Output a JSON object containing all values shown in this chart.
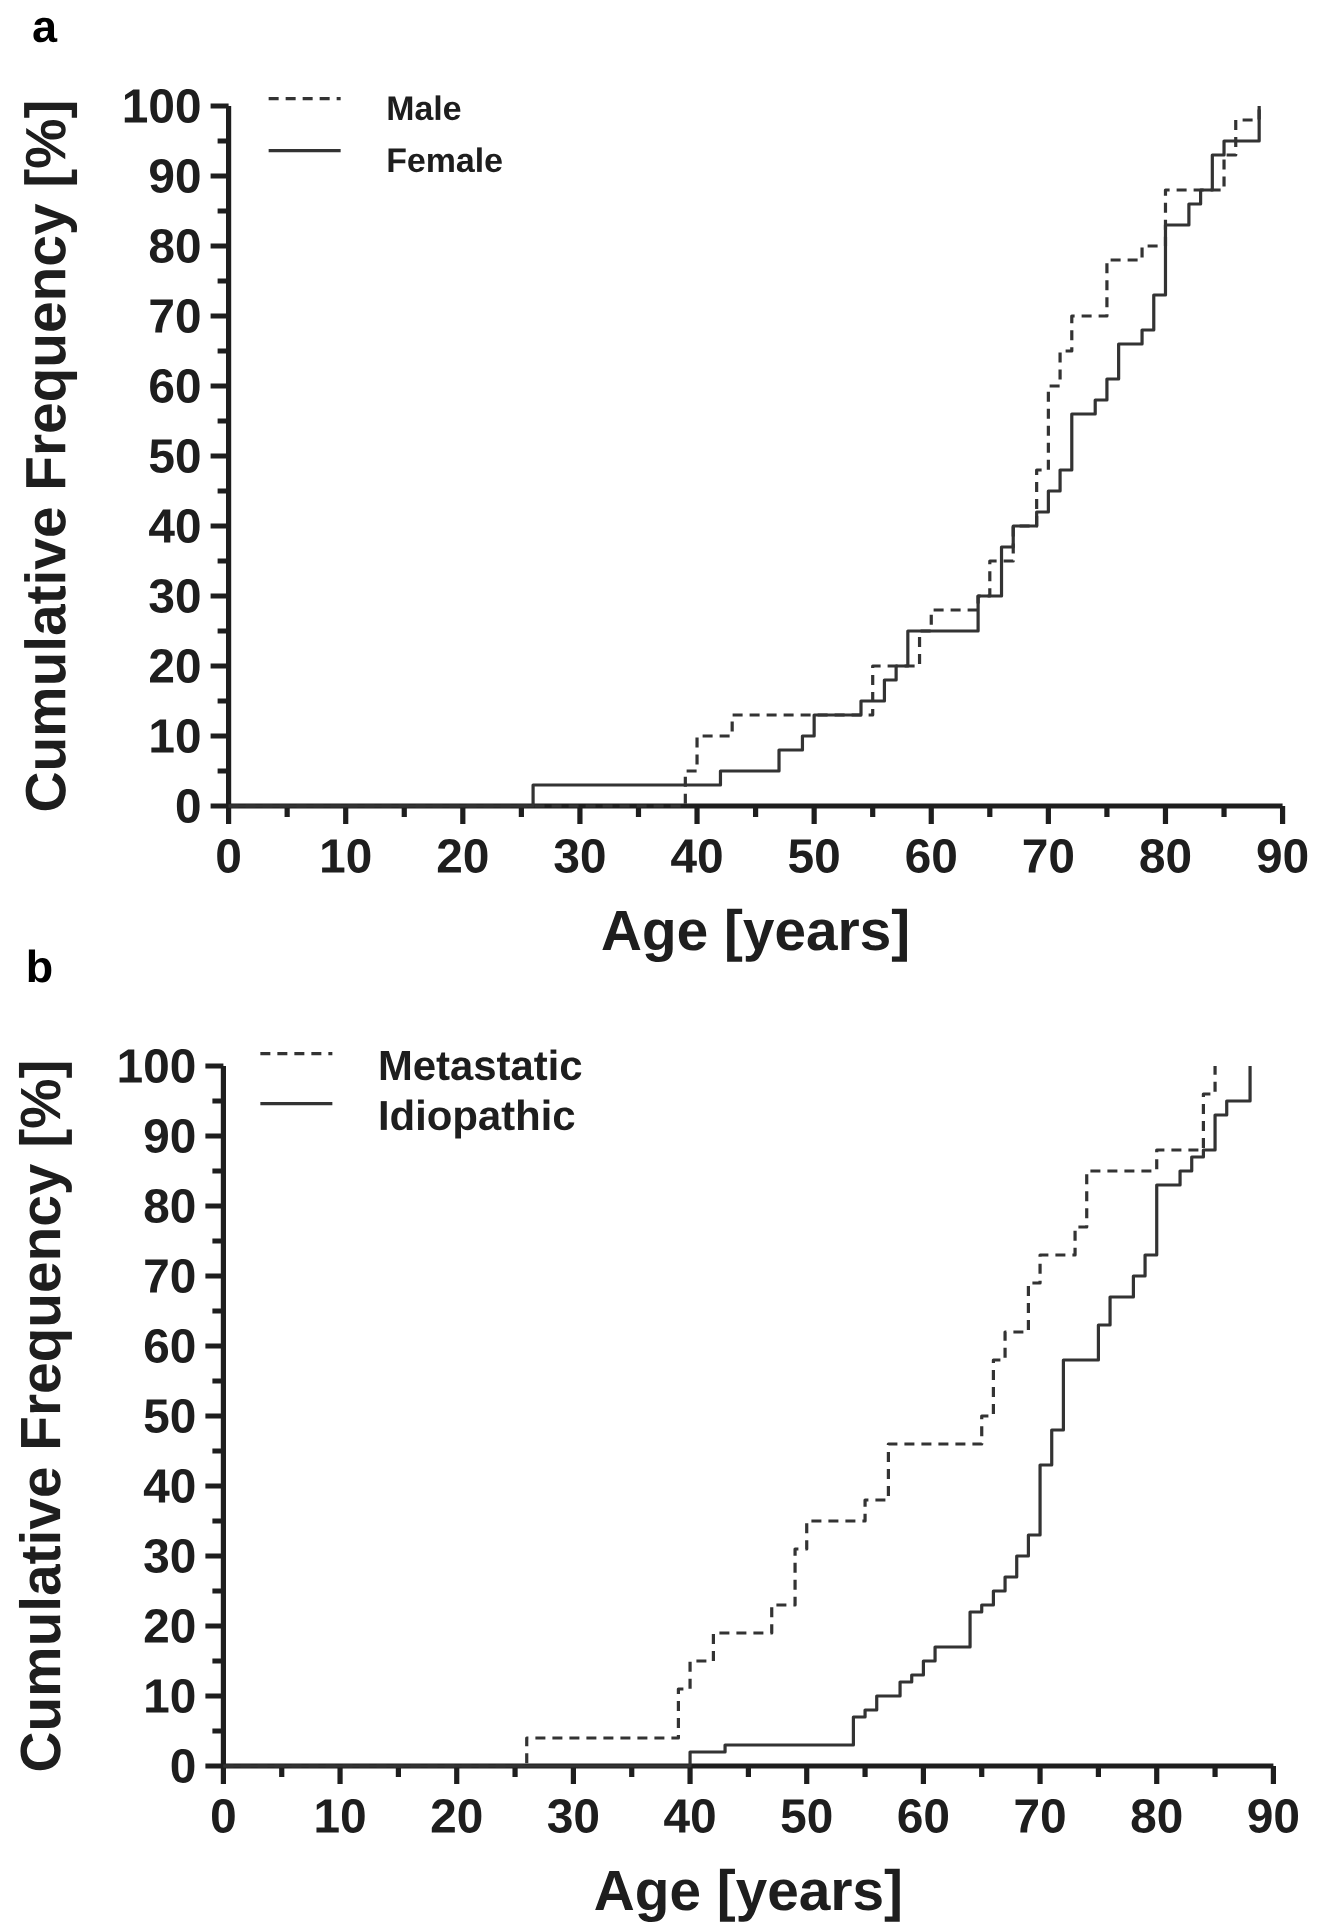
{
  "chart_data": [
    {
      "type": "step",
      "title": "a",
      "xlabel": "Age [years]",
      "ylabel": "Cumulative Frequency [%]",
      "xlim": [
        0,
        90
      ],
      "ylim": [
        0,
        100
      ],
      "xticks": [
        0,
        {
          "value": 5,
          "label": null
        },
        10,
        {
          "value": 15,
          "label": null
        },
        20,
        {
          "value": 25,
          "label": null
        },
        30,
        {
          "value": 35,
          "label": null
        },
        40,
        {
          "value": 45,
          "label": null
        },
        50,
        {
          "value": 55,
          "label": null
        },
        60,
        {
          "value": 65,
          "label": null
        },
        70,
        {
          "value": 75,
          "label": null
        },
        80,
        {
          "value": 85,
          "label": null
        },
        90
      ],
      "yticks": [
        0,
        {
          "value": 5,
          "label": null
        },
        10,
        {
          "value": 15,
          "label": null
        },
        20,
        {
          "value": 25,
          "label": null
        },
        30,
        {
          "value": 35,
          "label": null
        },
        40,
        {
          "value": 45,
          "label": null
        },
        50,
        {
          "value": 55,
          "label": null
        },
        60,
        {
          "value": 65,
          "label": null
        },
        70,
        {
          "value": 75,
          "label": null
        },
        80,
        {
          "value": 85,
          "label": null
        },
        90,
        {
          "value": 95,
          "label": null
        },
        100
      ],
      "legend": "top left",
      "series": [
        {
          "name": "Male",
          "color": "#333333",
          "line_style": "dashed",
          "x": [
            0,
            39,
            40,
            43,
            55,
            59,
            60,
            64,
            65,
            67,
            69,
            70,
            71,
            72,
            75,
            78,
            80,
            85,
            86,
            88
          ],
          "values": [
            0,
            5,
            10,
            13,
            20,
            25,
            28,
            30,
            35,
            40,
            48,
            60,
            65,
            70,
            78,
            80,
            88,
            93,
            98,
            100
          ]
        },
        {
          "name": "Female",
          "color": "#333333",
          "line_style": "solid",
          "x": [
            0,
            26,
            42,
            47,
            49,
            50,
            54,
            56,
            57,
            58,
            64,
            66,
            67,
            69,
            70,
            71,
            72,
            74,
            75,
            76,
            78,
            79,
            80,
            82,
            83,
            84,
            85,
            88
          ],
          "values": [
            0,
            3,
            5,
            8,
            10,
            13,
            15,
            18,
            20,
            25,
            30,
            37,
            40,
            42,
            45,
            48,
            56,
            58,
            61,
            66,
            68,
            73,
            83,
            86,
            88,
            93,
            95,
            100
          ]
        }
      ]
    },
    {
      "type": "step",
      "title": "b",
      "xlabel": "Age [years]",
      "ylabel": "Cumulative Frequency [%]",
      "xlim": [
        0,
        90
      ],
      "ylim": [
        0,
        100
      ],
      "xticks": [
        0,
        {
          "value": 5,
          "label": null
        },
        10,
        {
          "value": 15,
          "label": null
        },
        20,
        {
          "value": 25,
          "label": null
        },
        30,
        {
          "value": 35,
          "label": null
        },
        40,
        {
          "value": 45,
          "label": null
        },
        50,
        {
          "value": 55,
          "label": null
        },
        60,
        {
          "value": 65,
          "label": null
        },
        70,
        {
          "value": 75,
          "label": null
        },
        80,
        {
          "value": 85,
          "label": null
        },
        90
      ],
      "yticks": [
        0,
        {
          "value": 5,
          "label": null
        },
        10,
        {
          "value": 15,
          "label": null
        },
        20,
        {
          "value": 25,
          "label": null
        },
        30,
        {
          "value": 35,
          "label": null
        },
        40,
        {
          "value": 45,
          "label": null
        },
        50,
        {
          "value": 55,
          "label": null
        },
        60,
        {
          "value": 65,
          "label": null
        },
        70,
        {
          "value": 75,
          "label": null
        },
        80,
        {
          "value": 85,
          "label": null
        },
        90,
        {
          "value": 95,
          "label": null
        },
        100
      ],
      "legend": "top left",
      "series": [
        {
          "name": "Metastatic",
          "color": "#333333",
          "line_style": "dashed",
          "x": [
            0,
            26,
            39,
            40,
            42,
            47,
            49,
            50,
            55,
            57,
            65,
            66,
            67,
            69,
            70,
            73,
            74,
            80,
            84,
            85
          ],
          "values": [
            0,
            4,
            11,
            15,
            19,
            23,
            31,
            35,
            38,
            46,
            50,
            58,
            62,
            69,
            73,
            77,
            85,
            88,
            96,
            100
          ]
        },
        {
          "name": "Idiopathic",
          "color": "#333333",
          "line_style": "solid",
          "x": [
            0,
            40,
            43,
            54,
            55,
            56,
            58,
            59,
            60,
            61,
            64,
            65,
            66,
            67,
            68,
            69,
            70,
            71,
            72,
            75,
            76,
            78,
            79,
            80,
            82,
            83,
            84,
            85,
            86,
            88
          ],
          "values": [
            0,
            2,
            3,
            7,
            8,
            10,
            12,
            13,
            15,
            17,
            22,
            23,
            25,
            27,
            30,
            33,
            43,
            48,
            58,
            63,
            67,
            70,
            73,
            83,
            85,
            87,
            88,
            93,
            95,
            100
          ]
        }
      ]
    }
  ]
}
